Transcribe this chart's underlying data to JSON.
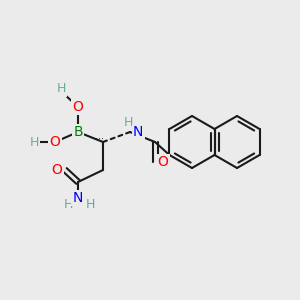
{
  "background_color": "#ebebeb",
  "bond_color": "#1a1a1a",
  "lw": 1.5,
  "figsize": [
    3.0,
    3.0
  ],
  "dpi": 100,
  "atoms": {
    "B": {
      "color": "#008000",
      "fontsize": 10
    },
    "O": {
      "color": "#ff0000",
      "fontsize": 10
    },
    "N": {
      "color": "#0000ff",
      "fontsize": 10
    },
    "H": {
      "color": "#6aaa9a",
      "fontsize": 9
    },
    "C": {
      "color": "#1a1a1a",
      "fontsize": 10
    }
  }
}
